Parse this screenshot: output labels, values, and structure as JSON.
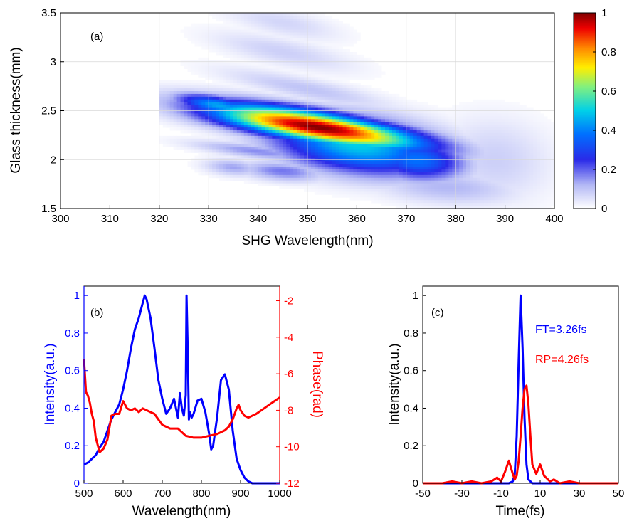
{
  "chart_data": [
    {
      "type": "heatmap",
      "panel_label": "(a)",
      "xlabel": "SHG Wavelength(nm)",
      "ylabel": "Glass thickness(mm)",
      "xlim": [
        300,
        400
      ],
      "ylim": [
        1.5,
        3.5
      ],
      "xticks": [
        300,
        310,
        320,
        330,
        340,
        350,
        360,
        370,
        380,
        390,
        400
      ],
      "yticks": [
        1.5,
        2,
        2.5,
        3,
        3.5
      ],
      "grid": true,
      "colorbar": {
        "min": 0,
        "max": 1,
        "ticks": [
          0,
          0.2,
          0.4,
          0.6,
          0.8,
          1
        ],
        "colormap": "white-blue-cyan-yellow-red"
      },
      "features": [
        {
          "x": 352,
          "y": 2.33,
          "value": 1.0,
          "sx": 15,
          "sy": 0.11,
          "tilt": -0.008
        },
        {
          "x": 344,
          "y": 2.44,
          "value": 0.7,
          "sx": 7,
          "sy": 0.06,
          "tilt": -0.008
        },
        {
          "x": 360,
          "y": 2.15,
          "value": 0.5,
          "sx": 12,
          "sy": 0.2,
          "tilt": -0.006
        },
        {
          "x": 372,
          "y": 2.0,
          "value": 0.38,
          "sx": 7,
          "sy": 0.15,
          "tilt": -0.004
        },
        {
          "x": 332,
          "y": 2.55,
          "value": 0.45,
          "sx": 6,
          "sy": 0.07,
          "tilt": -0.008
        },
        {
          "x": 345,
          "y": 1.88,
          "value": 0.18,
          "sx": 6,
          "sy": 0.07,
          "tilt": -0.004
        },
        {
          "x": 335,
          "y": 1.92,
          "value": 0.14,
          "sx": 4,
          "sy": 0.06,
          "tilt": -0.004
        },
        {
          "x": 340,
          "y": 2.08,
          "value": 0.16,
          "sx": 9,
          "sy": 0.05,
          "tilt": -0.006
        },
        {
          "x": 350,
          "y": 2.72,
          "value": 0.1,
          "sx": 12,
          "sy": 0.08,
          "tilt": -0.01
        },
        {
          "x": 345,
          "y": 3.1,
          "value": 0.08,
          "sx": 10,
          "sy": 0.1,
          "tilt": -0.01
        },
        {
          "x": 345,
          "y": 3.4,
          "value": 0.07,
          "sx": 8,
          "sy": 0.1,
          "tilt": -0.01
        },
        {
          "x": 378,
          "y": 1.72,
          "value": 0.12,
          "sx": 10,
          "sy": 0.12,
          "tilt": -0.003
        },
        {
          "x": 388,
          "y": 2.0,
          "value": 0.08,
          "sx": 8,
          "sy": 0.3,
          "tilt": -0.003
        }
      ]
    },
    {
      "type": "line",
      "panel_label": "(b)",
      "xlabel": "Wavelength(nm)",
      "ylabel": "Intensity(a.u.)",
      "ylabel_right": "Phase(rad)",
      "xlim": [
        500,
        1000
      ],
      "ylim": [
        0,
        1.05
      ],
      "ylim_right": [
        -12,
        -1.2
      ],
      "xticks": [
        500,
        600,
        700,
        800,
        900,
        1000
      ],
      "yticks": [
        0,
        0.2,
        0.4,
        0.6,
        0.8,
        1
      ],
      "yticks_right": [
        -12,
        -10,
        -8,
        -6,
        -4,
        -2
      ],
      "series": [
        {
          "color": "#0000ff",
          "axis": "left",
          "x": [
            500,
            510,
            520,
            530,
            540,
            550,
            560,
            570,
            580,
            590,
            600,
            610,
            620,
            630,
            640,
            650,
            655,
            660,
            670,
            680,
            690,
            700,
            710,
            720,
            730,
            740,
            745,
            750,
            755,
            760,
            762,
            765,
            768,
            770,
            775,
            780,
            790,
            800,
            810,
            820,
            825,
            830,
            840,
            850,
            860,
            870,
            880,
            890,
            900,
            910,
            920,
            930,
            950,
            970,
            990,
            1000
          ],
          "y": [
            0.1,
            0.11,
            0.13,
            0.15,
            0.19,
            0.22,
            0.28,
            0.34,
            0.38,
            0.42,
            0.5,
            0.6,
            0.72,
            0.82,
            0.88,
            0.96,
            1.0,
            0.98,
            0.88,
            0.72,
            0.55,
            0.45,
            0.37,
            0.4,
            0.45,
            0.35,
            0.48,
            0.4,
            0.36,
            0.47,
            1.0,
            0.7,
            0.34,
            0.38,
            0.35,
            0.37,
            0.44,
            0.45,
            0.38,
            0.26,
            0.18,
            0.2,
            0.35,
            0.55,
            0.58,
            0.5,
            0.28,
            0.13,
            0.07,
            0.03,
            0.01,
            0.0,
            0.0,
            0.0,
            0.0,
            0.0
          ]
        },
        {
          "color": "#ff0000",
          "axis": "right",
          "x": [
            500,
            505,
            510,
            515,
            520,
            525,
            530,
            540,
            550,
            560,
            570,
            580,
            590,
            600,
            610,
            620,
            630,
            640,
            650,
            660,
            670,
            680,
            690,
            700,
            720,
            740,
            760,
            780,
            800,
            820,
            840,
            860,
            870,
            880,
            890,
            895,
            900,
            910,
            920,
            940,
            960,
            980,
            1000
          ],
          "y": [
            -5.2,
            -7.0,
            -7.2,
            -7.6,
            -8.2,
            -8.6,
            -9.5,
            -10.3,
            -10.1,
            -9.6,
            -8.3,
            -8.2,
            -8.2,
            -7.5,
            -7.9,
            -8.0,
            -7.9,
            -8.1,
            -7.9,
            -8.0,
            -8.1,
            -8.2,
            -8.5,
            -8.8,
            -9.0,
            -9.0,
            -9.4,
            -9.5,
            -9.5,
            -9.4,
            -9.3,
            -9.1,
            -8.9,
            -8.5,
            -7.9,
            -7.7,
            -8.0,
            -8.3,
            -8.4,
            -8.2,
            -7.9,
            -7.6,
            -7.3
          ]
        }
      ]
    },
    {
      "type": "line",
      "panel_label": "(c)",
      "xlabel": "Time(fs)",
      "ylabel": "Intensity(a.u.)",
      "xlim": [
        -50,
        50
      ],
      "ylim": [
        0,
        1.05
      ],
      "xticks": [
        -50,
        -30,
        -10,
        10,
        30,
        50
      ],
      "yticks": [
        0,
        0.2,
        0.4,
        0.6,
        0.8,
        1
      ],
      "annotations": [
        {
          "text": "FT=3.26fs",
          "color": "#0000ff",
          "x": 8,
          "y": 0.86
        },
        {
          "text": "RP=4.26fs",
          "color": "#ff0000",
          "x": 8,
          "y": 0.65
        }
      ],
      "series": [
        {
          "color": "#0000ff",
          "x": [
            -50,
            -30,
            -10,
            -6,
            -4,
            -3,
            -2,
            -1,
            0,
            1,
            2,
            3,
            4,
            6,
            10,
            30,
            50
          ],
          "y": [
            0,
            0,
            0,
            0.0,
            0.01,
            0.05,
            0.25,
            0.65,
            1.0,
            0.72,
            0.35,
            0.1,
            0.02,
            0.0,
            0,
            0,
            0
          ]
        },
        {
          "color": "#ff0000",
          "x": [
            -50,
            -40,
            -35,
            -30,
            -25,
            -20,
            -15,
            -12,
            -10,
            -8,
            -6,
            -4,
            -3,
            -2,
            -1,
            0,
            1,
            2,
            3,
            4,
            5,
            6,
            8,
            10,
            12,
            15,
            17,
            20,
            25,
            30,
            40,
            50
          ],
          "y": [
            0,
            0,
            0.01,
            0,
            0.01,
            0,
            0.01,
            0.03,
            0.01,
            0.06,
            0.12,
            0.05,
            0.02,
            0.04,
            0.12,
            0.25,
            0.4,
            0.5,
            0.52,
            0.42,
            0.25,
            0.1,
            0.05,
            0.1,
            0.04,
            0.01,
            0.02,
            0,
            0.01,
            0,
            0,
            0
          ]
        }
      ]
    }
  ]
}
